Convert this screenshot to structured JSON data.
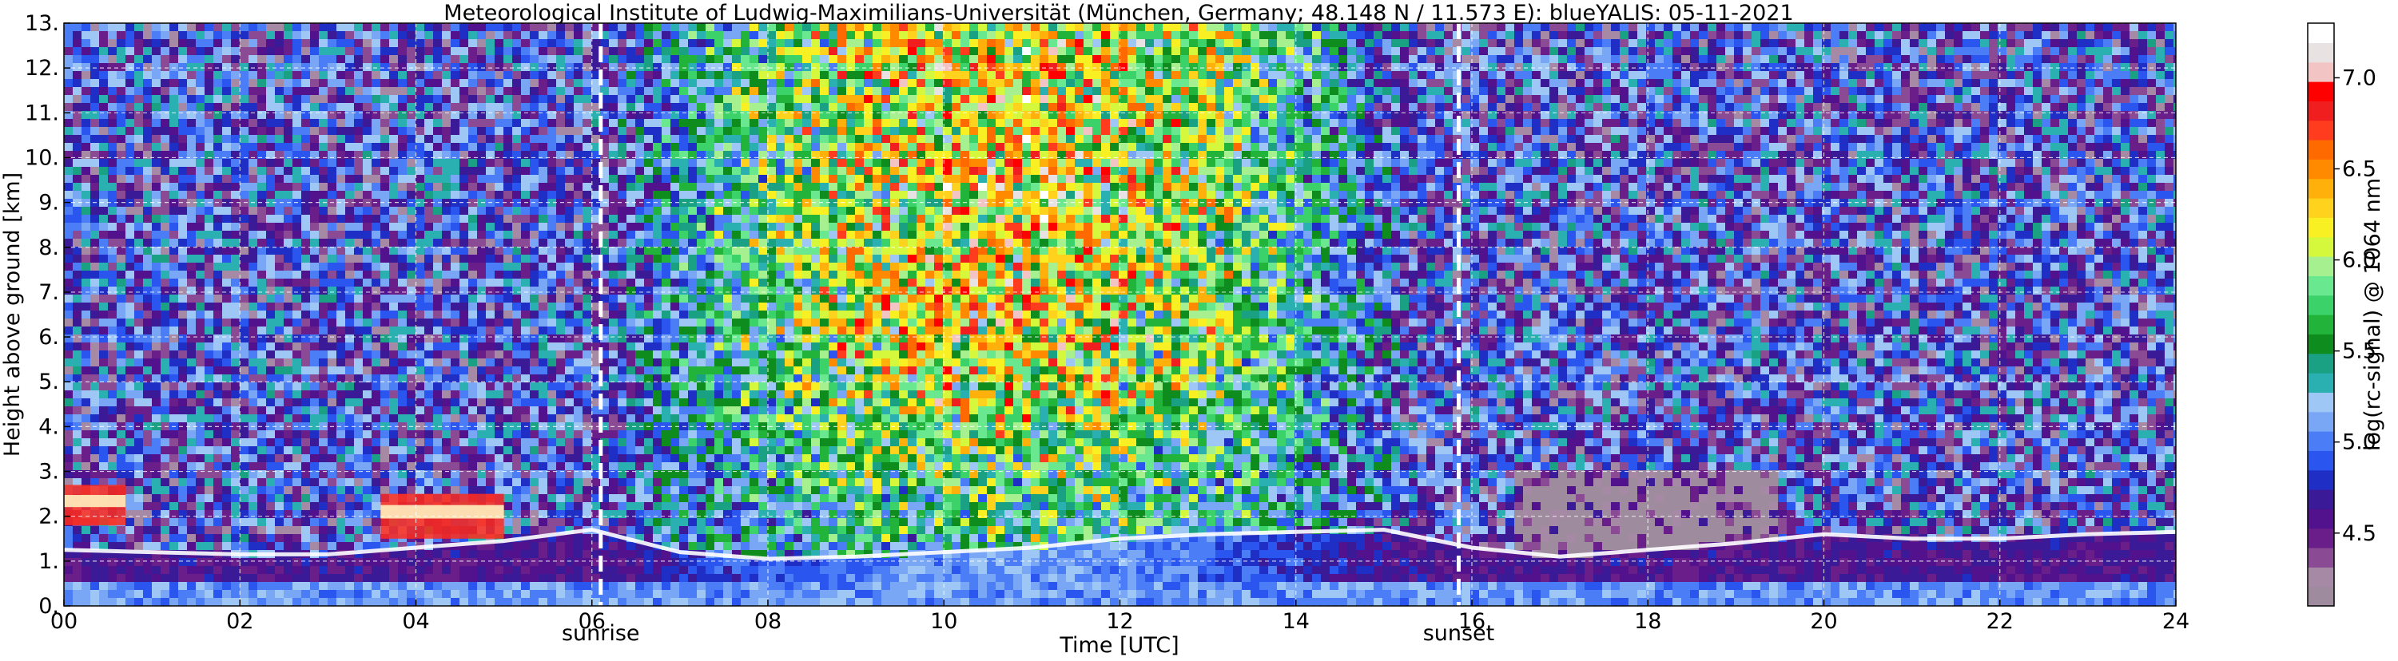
{
  "chart_data": {
    "type": "heatmap",
    "title": "Meteorological Institute of Ludwig-Maximilians-Universität (München, Germany; 48.148 N / 11.573 E):    blueYALIS: 05-11-2021",
    "xlabel": "Time [UTC]",
    "ylabel": "Height above ground [km]",
    "colorbar_label": "log(rc-signal) @ 1064 nm",
    "xlim": [
      0,
      24
    ],
    "ylim": [
      0,
      13
    ],
    "x_ticks": [
      {
        "value": 0,
        "label": "00"
      },
      {
        "value": 2,
        "label": "02"
      },
      {
        "value": 4,
        "label": "04"
      },
      {
        "value": 6,
        "label": "06"
      },
      {
        "value": 8,
        "label": "08"
      },
      {
        "value": 10,
        "label": "10"
      },
      {
        "value": 12,
        "label": "12"
      },
      {
        "value": 14,
        "label": "14"
      },
      {
        "value": 16,
        "label": "16"
      },
      {
        "value": 18,
        "label": "18"
      },
      {
        "value": 20,
        "label": "20"
      },
      {
        "value": 22,
        "label": "22"
      },
      {
        "value": 24,
        "label": "24"
      }
    ],
    "y_ticks": [
      {
        "value": 0,
        "label": "0."
      },
      {
        "value": 1,
        "label": "1."
      },
      {
        "value": 2,
        "label": "2."
      },
      {
        "value": 3,
        "label": "3."
      },
      {
        "value": 4,
        "label": "4."
      },
      {
        "value": 5,
        "label": "5."
      },
      {
        "value": 6,
        "label": "6."
      },
      {
        "value": 7,
        "label": "7."
      },
      {
        "value": 8,
        "label": "8."
      },
      {
        "value": 9,
        "label": "9."
      },
      {
        "value": 10,
        "label": "10."
      },
      {
        "value": 11,
        "label": "11."
      },
      {
        "value": 12,
        "label": "12."
      },
      {
        "value": 13,
        "label": "13."
      }
    ],
    "grid": true,
    "markers": [
      {
        "name": "sunrise",
        "x": 6.1
      },
      {
        "name": "sunset",
        "x": 15.85
      }
    ],
    "colorbar": {
      "range": [
        4.1,
        7.3
      ],
      "ticks": [
        {
          "value": 4.5,
          "label": "4.5"
        },
        {
          "value": 5.0,
          "label": "5.0"
        },
        {
          "value": 5.5,
          "label": "5.5"
        },
        {
          "value": 6.0,
          "label": "6.0"
        },
        {
          "value": 6.5,
          "label": "6.5"
        },
        {
          "value": 7.0,
          "label": "7.0"
        }
      ],
      "colors": [
        "#9e8b9e",
        "#a589a5",
        "#8a4a94",
        "#6a1e8a",
        "#52128e",
        "#3a1a96",
        "#1f2fc6",
        "#2a55ee",
        "#4a7df6",
        "#7aa6f6",
        "#9fc7f6",
        "#2ab0b0",
        "#1aa082",
        "#0e8c1e",
        "#22b43a",
        "#3cd26a",
        "#6ae890",
        "#a6f090",
        "#d6f83c",
        "#f8f022",
        "#ffd21e",
        "#ffb00a",
        "#ff8a00",
        "#ff6a00",
        "#ff3c1e",
        "#f01e1e",
        "#ff0000",
        "#f2c4c4",
        "#e8e2e2",
        "#ffffff"
      ]
    },
    "layers": {
      "surface_layer_top_km": 0.45,
      "boundary_layer_top_km": [
        [
          0,
          1.25
        ],
        [
          1,
          1.2
        ],
        [
          2,
          1.15
        ],
        [
          3,
          1.15
        ],
        [
          4,
          1.3
        ],
        [
          5,
          1.45
        ],
        [
          6,
          1.7
        ],
        [
          7,
          1.2
        ],
        [
          8,
          1.05
        ],
        [
          9,
          1.1
        ],
        [
          10,
          1.2
        ],
        [
          11,
          1.3
        ],
        [
          12,
          1.5
        ],
        [
          13,
          1.6
        ],
        [
          14,
          1.65
        ],
        [
          15,
          1.7
        ],
        [
          16,
          1.3
        ],
        [
          17,
          1.1
        ],
        [
          18,
          1.25
        ],
        [
          19,
          1.4
        ],
        [
          20,
          1.6
        ],
        [
          21,
          1.5
        ],
        [
          22,
          1.5
        ],
        [
          23,
          1.6
        ],
        [
          24,
          1.65
        ]
      ],
      "cloud_patches": [
        {
          "x": [
            0,
            0.7
          ],
          "y": [
            1.8,
            2.7
          ],
          "max_signal": 7.0
        },
        {
          "x": [
            3.6,
            5.0
          ],
          "y": [
            1.5,
            2.5
          ],
          "max_signal": 6.8
        }
      ]
    }
  }
}
